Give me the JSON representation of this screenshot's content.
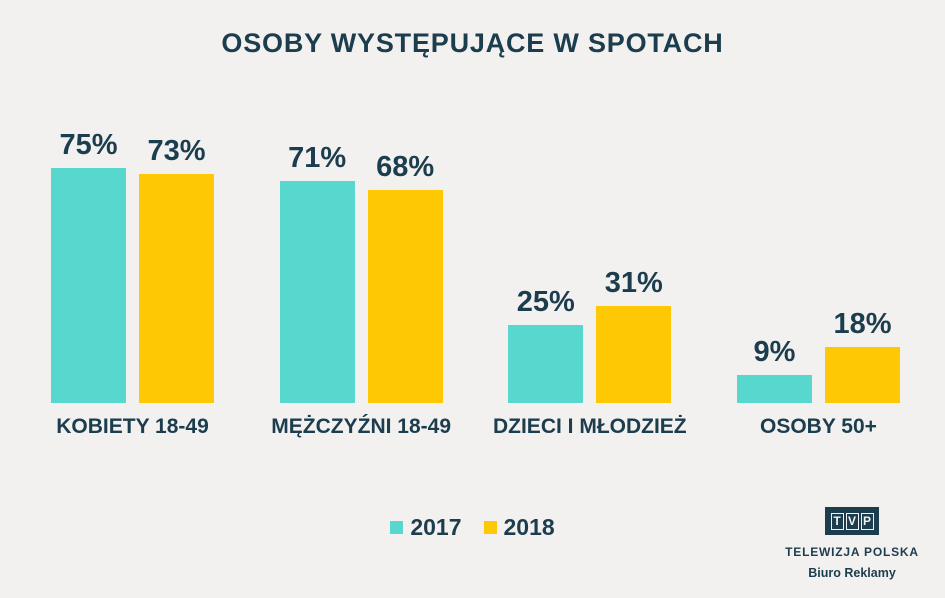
{
  "title": "OSOBY WYSTĘPUJĄCE W SPOTACH",
  "colors": {
    "background": "#F2F1EF",
    "text": "#1C3D4E",
    "series_2017": "#57D7CE",
    "series_2018": "#FFC805"
  },
  "chart_data": {
    "type": "bar",
    "title": "OSOBY WYSTĘPUJĄCE W SPOTACH",
    "categories": [
      "KOBIETY 18-49",
      "MĘŻCZYŹNI 18-49",
      "DZIECI I MŁODZIEŻ",
      "OSOBY 50+"
    ],
    "series": [
      {
        "name": "2017",
        "color": "#57D7CE",
        "values": [
          75,
          71,
          25,
          9
        ]
      },
      {
        "name": "2018",
        "color": "#FFC805",
        "values": [
          73,
          68,
          31,
          18
        ]
      }
    ],
    "value_suffix": "%",
    "xlabel": "",
    "ylabel": "",
    "ylim": [
      0,
      100
    ],
    "grid": false,
    "axes_visible": false,
    "legend_position": "bottom"
  },
  "branding": {
    "logo_text": "TVP",
    "logo_letters": [
      "T",
      "V",
      "P"
    ],
    "line1": "TELEWIZJA POLSKA",
    "line2": "Biuro Reklamy"
  }
}
